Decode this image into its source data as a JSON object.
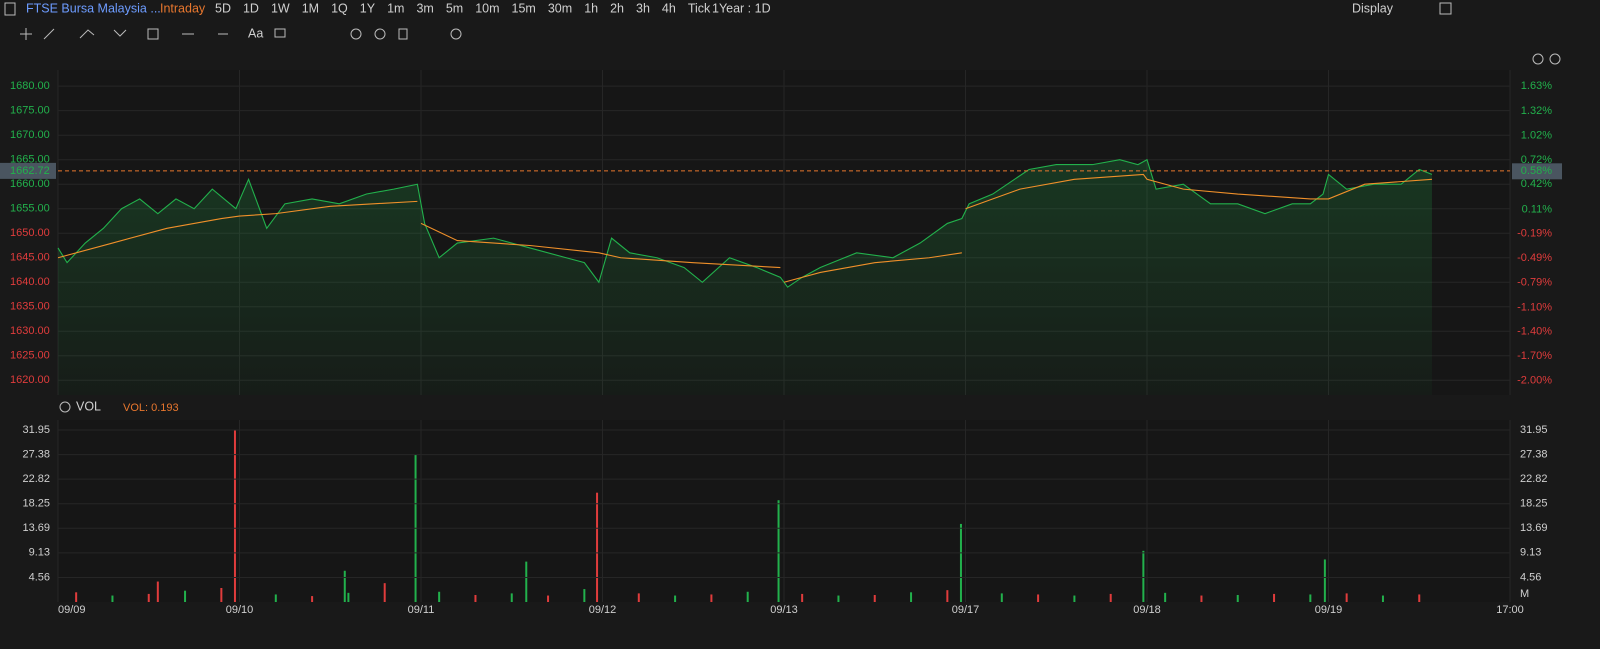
{
  "toolbar": {
    "symbol": "FTSE Bursa Malaysia ...",
    "mode": "Intraday",
    "periods": [
      "5D",
      "1D",
      "1W",
      "1M",
      "1Q",
      "1Y",
      "1m",
      "3m",
      "5m",
      "10m",
      "15m",
      "30m",
      "1h",
      "2h",
      "3h",
      "4h",
      "Tick"
    ],
    "range": "1Year : 1D",
    "display": "Display",
    "text_tool": "Aa"
  },
  "chart_data": [
    {
      "type": "line",
      "xlim": [
        0,
        8
      ],
      "ylim": [
        1617,
        1683.3
      ],
      "y2lim": [
        -2.18,
        1.83
      ],
      "grid": true,
      "yticks": [
        {
          "value": 1620,
          "label": "1620.00"
        },
        {
          "value": 1625,
          "label": "1625.00"
        },
        {
          "value": 1630,
          "label": "1630.00"
        },
        {
          "value": 1635,
          "label": "1635.00"
        },
        {
          "value": 1640,
          "label": "1640.00"
        },
        {
          "value": 1645,
          "label": "1645.00"
        },
        {
          "value": 1650,
          "label": "1650.00"
        },
        {
          "value": 1655,
          "label": "1655.00"
        },
        {
          "value": 1660,
          "label": "1660.00"
        },
        {
          "value": 1665,
          "label": "1665.00"
        },
        {
          "value": 1670,
          "label": "1670.00"
        },
        {
          "value": 1675,
          "label": "1675.00"
        },
        {
          "value": 1680,
          "label": "1680.00"
        }
      ],
      "y2ticks": [
        {
          "value": -2,
          "label": "-2.00%"
        },
        {
          "value": -1.7,
          "label": "-1.70%"
        },
        {
          "value": -1.4,
          "label": "-1.40%"
        },
        {
          "value": -1.1,
          "label": "-1.10%"
        },
        {
          "value": -0.79,
          "label": "-0.79%"
        },
        {
          "value": -0.49,
          "label": "-0.49%"
        },
        {
          "value": -0.19,
          "label": "-0.19%"
        },
        {
          "value": 0.11,
          "label": "0.11%"
        },
        {
          "value": 0.42,
          "label": "0.42%"
        },
        {
          "value": 0.72,
          "label": "0.72%"
        },
        {
          "value": 1.02,
          "label": "1.02%"
        },
        {
          "value": 1.32,
          "label": "1.32%"
        },
        {
          "value": 1.63,
          "label": "1.63%"
        }
      ],
      "last_price": 1662.72,
      "last_change": {
        "value": 0.58,
        "label": "0.58%"
      },
      "up_color": "#22b14c",
      "down_color": "#e03c3c",
      "last_color": "#e8772e",
      "series": [
        {
          "color": "#22b14c",
          "x": [
            0,
            0.05,
            0.15,
            0.25,
            0.35,
            0.45,
            0.55,
            0.65,
            0.75,
            0.85,
            0.98,
            1.05,
            1.15,
            1.25,
            1.4,
            1.55,
            1.7,
            1.85,
            1.98,
            2.02,
            2.1,
            2.2,
            2.4,
            2.6,
            2.8,
            2.9,
            2.98,
            3.05,
            3.15,
            3.3,
            3.45,
            3.55,
            3.7,
            3.85,
            3.98,
            4.02,
            4.1,
            4.2,
            4.4,
            4.6,
            4.75,
            4.9,
            4.98,
            5.02,
            5.15,
            5.35,
            5.5,
            5.7,
            5.85,
            5.95,
            6.0,
            6.05,
            6.2,
            6.35,
            6.5,
            6.65,
            6.8,
            6.9,
            6.97,
            7.0,
            7.1,
            7.25,
            7.4,
            7.5,
            7.57
          ],
          "values": [
            1647,
            1644,
            1648,
            1651,
            1655,
            1657,
            1654,
            1657,
            1655,
            1659,
            1655,
            1661,
            1651,
            1656,
            1657,
            1656,
            1658,
            1659,
            1660,
            1652,
            1645,
            1648,
            1649,
            1647,
            1645,
            1644,
            1640,
            1649,
            1646,
            1645,
            1643,
            1640,
            1645,
            1643,
            1641,
            1639,
            1641,
            1643,
            1646,
            1645,
            1648,
            1652,
            1653,
            1656,
            1658,
            1663,
            1664,
            1664,
            1665,
            1664,
            1665,
            1659,
            1660,
            1656,
            1656,
            1654,
            1656,
            1656,
            1658,
            1662,
            1659,
            1660,
            1660,
            1663,
            1662
          ]
        },
        {
          "color": "#f0902a",
          "x": [
            0,
            0.3,
            0.6,
            0.9,
            1.0,
            1.2,
            1.5,
            1.98,
            2.0,
            2.0,
            2.2,
            2.6,
            2.98,
            3.1,
            3.5,
            3.98,
            4.0,
            4.0,
            4.2,
            4.5,
            4.8,
            4.98,
            5.0,
            5.0,
            5.3,
            5.6,
            5.98,
            6.0,
            6.2,
            6.5,
            6.9,
            7.0,
            7.2,
            7.57
          ],
          "values": [
            1645,
            1648,
            1651,
            1653,
            1653.5,
            1654,
            1655.5,
            1656.5,
            null,
            1652,
            1648.5,
            1647.5,
            1646,
            1645,
            1644,
            1643,
            null,
            1640,
            1642,
            1644,
            1645,
            1646,
            null,
            1655,
            1659,
            1661,
            1662,
            1661,
            1659,
            1658,
            1657,
            1657,
            1660,
            1661
          ]
        }
      ]
    },
    {
      "type": "bar",
      "xlim": [
        0,
        8
      ],
      "ylim": [
        0,
        33.8
      ],
      "yticks": [
        4.56,
        9.13,
        13.69,
        18.25,
        22.82,
        27.38,
        31.95
      ],
      "unit": "M",
      "indicator": "VOL",
      "indicator_value": "VOL: 0.193",
      "xticks": [
        {
          "value": 0,
          "label": "09/09"
        },
        {
          "value": 1,
          "label": "09/10"
        },
        {
          "value": 2,
          "label": "09/11"
        },
        {
          "value": 3,
          "label": "09/12"
        },
        {
          "value": 4,
          "label": "09/13"
        },
        {
          "value": 5,
          "label": "09/17"
        },
        {
          "value": 6,
          "label": "09/18"
        },
        {
          "value": 7,
          "label": "09/19"
        },
        {
          "value": 8,
          "label": "17:00"
        }
      ],
      "x": [
        0.1,
        0.3,
        0.5,
        0.7,
        0.9,
        1.2,
        1.4,
        1.6,
        1.8,
        2.1,
        2.3,
        2.5,
        2.7,
        2.9,
        3.2,
        3.4,
        3.6,
        3.8,
        4.1,
        4.3,
        4.5,
        4.7,
        4.9,
        5.2,
        5.4,
        5.6,
        5.8,
        6.1,
        6.3,
        6.5,
        6.7,
        6.9,
        7.1,
        7.3,
        7.5,
        0.975,
        1.97,
        2.97,
        3.97,
        4.975,
        5.98,
        6.98,
        2.58,
        1.58,
        0.55
      ],
      "values": [
        1.8,
        1.2,
        1.5,
        2.1,
        2.6,
        1.4,
        1.1,
        1.7,
        3.5,
        1.9,
        1.3,
        1.6,
        1.2,
        2.4,
        1.6,
        1.2,
        1.4,
        1.9,
        1.5,
        1.2,
        1.3,
        1.8,
        2.2,
        1.6,
        1.4,
        1.2,
        1.5,
        1.7,
        1.2,
        1.3,
        1.5,
        1.4,
        1.6,
        1.2,
        1.4,
        31.9,
        27.3,
        20.3,
        18.9,
        14.5,
        9.5,
        7.9,
        7.5,
        5.8,
        3.8
      ],
      "colors": [
        "#e03c3c",
        "#22b14c",
        "#e03c3c",
        "#22b14c",
        "#e03c3c",
        "#22b14c",
        "#e03c3c",
        "#22b14c",
        "#e03c3c",
        "#22b14c",
        "#e03c3c",
        "#22b14c",
        "#e03c3c",
        "#22b14c",
        "#e03c3c",
        "#22b14c",
        "#e03c3c",
        "#22b14c",
        "#e03c3c",
        "#22b14c",
        "#e03c3c",
        "#22b14c",
        "#e03c3c",
        "#22b14c",
        "#e03c3c",
        "#22b14c",
        "#e03c3c",
        "#22b14c",
        "#e03c3c",
        "#22b14c",
        "#e03c3c",
        "#22b14c",
        "#e03c3c",
        "#22b14c",
        "#e03c3c",
        "#e03c3c",
        "#22b14c",
        "#e03c3c",
        "#22b14c",
        "#22b14c",
        "#22b14c",
        "#22b14c",
        "#22b14c",
        "#22b14c",
        "#e03c3c"
      ]
    }
  ]
}
